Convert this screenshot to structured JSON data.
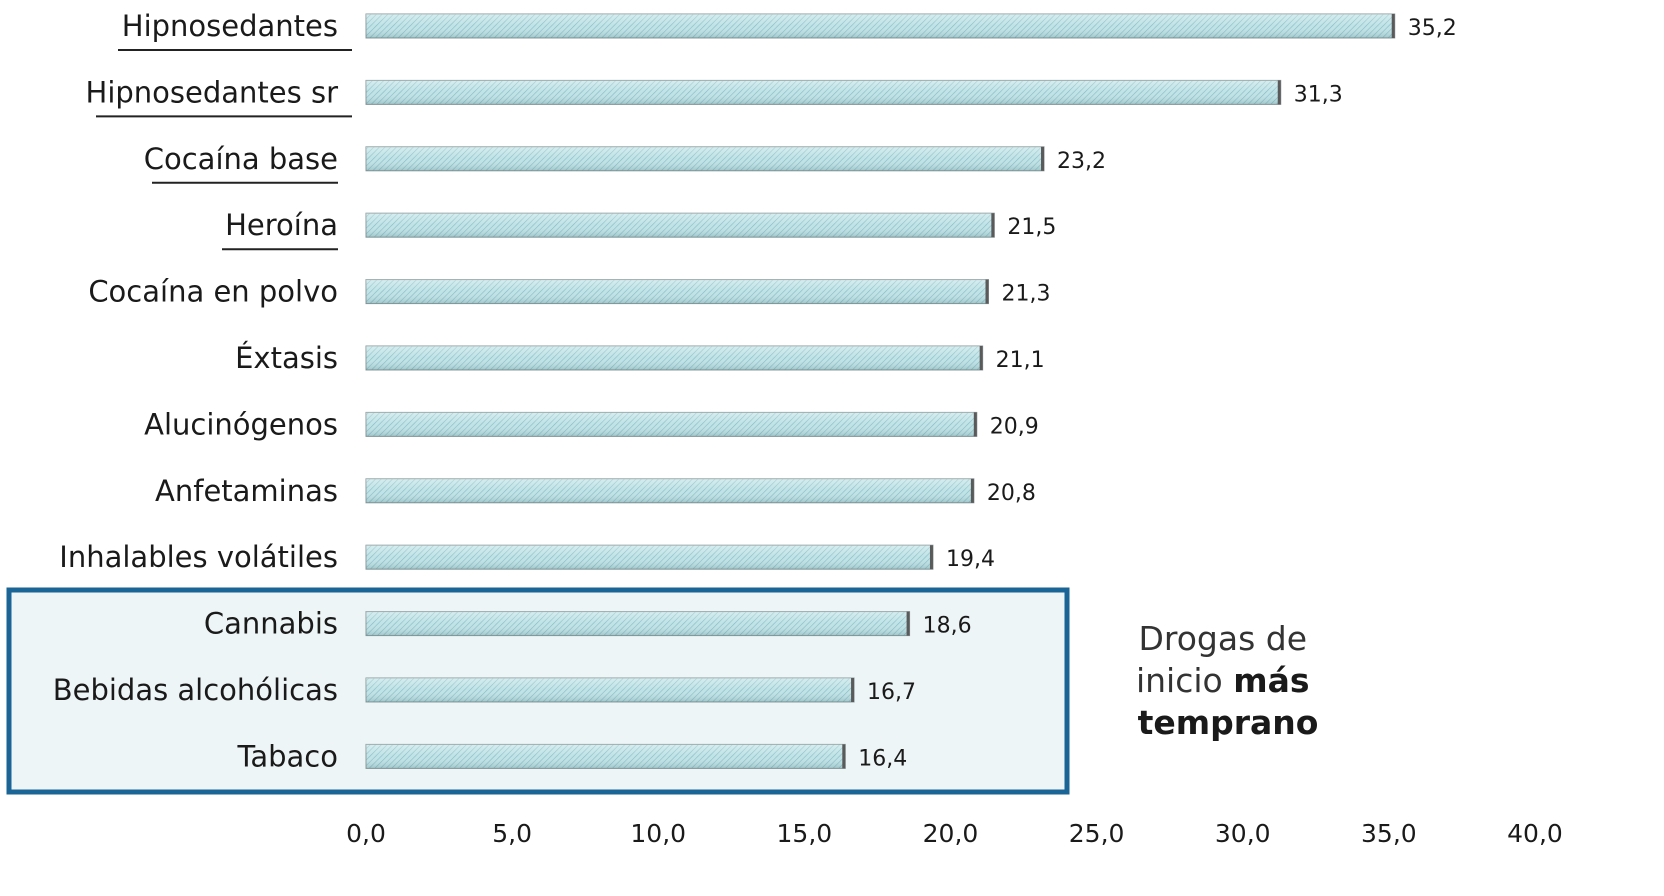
{
  "chart_data": {
    "type": "bar",
    "orientation": "horizontal",
    "categories": [
      "Hipnosedantes",
      "Hipnosedantes sr",
      "Cocaína base",
      "Heroína",
      "Cocaína en polvo",
      "Éxtasis",
      "Alucinógenos",
      "Anfetaminas",
      "Inhalables volátiles",
      "Cannabis",
      "Bebidas alcohólicas",
      "Tabaco"
    ],
    "values": [
      35.2,
      31.3,
      23.2,
      21.5,
      21.3,
      21.1,
      20.9,
      20.8,
      19.4,
      18.6,
      16.7,
      16.4
    ],
    "value_labels": [
      "35,2",
      "31,3",
      "23,2",
      "21,5",
      "21,3",
      "21,1",
      "20,9",
      "20,8",
      "19,4",
      "18,6",
      "16,7",
      "16,4"
    ],
    "xlim": [
      0,
      40
    ],
    "x_ticks": [
      "0,0",
      "5,0",
      "10,0",
      "15,0",
      "20,0",
      "25,0",
      "30,0",
      "35,0",
      "40,0"
    ],
    "grid": false,
    "highlight_categories": [
      "Cannabis",
      "Bebidas alcohólicas",
      "Tabaco"
    ],
    "annotation": {
      "line1": "Drogas de",
      "line2_normal": "inicio ",
      "line2_bold": "más",
      "line3_bold": "temprano"
    }
  },
  "colors": {
    "bar_fill": "#b9e0e4",
    "bar_stripe": "#7fb4bb",
    "bar_end": "#5a5a5a",
    "highlight_border": "#1a6496",
    "highlight_fill": "#eef5f7",
    "underline": "#222222"
  }
}
